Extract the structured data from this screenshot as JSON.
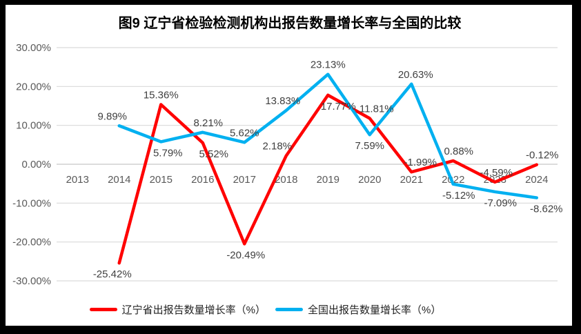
{
  "frame": {
    "border_color": "#000000",
    "background_color": "#ffffff"
  },
  "chart_data": {
    "type": "line",
    "title": "图9  辽宁省检验检测机构出报告数量增长率与全国的比较",
    "categories": [
      "2013",
      "2014",
      "2015",
      "2016",
      "2017",
      "2018",
      "2019",
      "2020",
      "2021",
      "2022",
      "2023",
      "2024"
    ],
    "yticks": [
      "30.00%",
      "20.00%",
      "10.00%",
      "0.00%",
      "-10.00%",
      "-20.00%",
      "-30.00%"
    ],
    "ylim": [
      -30,
      30
    ],
    "ytick_step": 10,
    "grid": true,
    "gridline_color": "#d9d9d9",
    "zero_line_color": "#c6c6c6",
    "axis_label_color": "#595959",
    "data_label_color": "#3f3f3f",
    "legend_position": "bottom",
    "series": [
      {
        "id": "liaoning",
        "name": "辽宁省出报告数量增长率（%）",
        "color": "#FF0000",
        "values": [
          null,
          -25.42,
          15.36,
          5.52,
          -20.49,
          2.18,
          17.77,
          11.81,
          -1.99,
          0.88,
          -4.59,
          -0.12
        ],
        "labels": [
          null,
          "-25.42%",
          "15.36%",
          "5.52%",
          "-20.49%",
          "2.18%",
          "17.77%",
          "11.81%",
          "-1.99%",
          "0.88%",
          "-4.59%",
          "-0.12%"
        ],
        "label_side": [
          null,
          "below",
          "above",
          "below",
          "below",
          "above",
          "below",
          "above",
          "above",
          "above",
          "above",
          "above"
        ],
        "label_dx": [
          0,
          -10,
          0,
          16,
          2,
          -13,
          15,
          10,
          13,
          8,
          2,
          8
        ]
      },
      {
        "id": "national",
        "name": "全国出报告数量增长率（%）",
        "color": "#00B0F0",
        "values": [
          null,
          9.89,
          5.79,
          8.21,
          5.62,
          13.83,
          23.13,
          7.59,
          20.63,
          -5.12,
          -7.09,
          -8.62
        ],
        "labels": [
          null,
          "9.89%",
          "5.79%",
          "8.21%",
          "5.62%",
          "13.83%",
          "23.13%",
          "7.59%",
          "20.63%",
          "-5.12%",
          "-7.09%",
          "-8.62%"
        ],
        "label_side": [
          null,
          "above",
          "below",
          "above",
          "above",
          "above",
          "above",
          "below",
          "above",
          "below",
          "below",
          "below"
        ],
        "label_dx": [
          0,
          -10,
          10,
          8,
          0,
          -5,
          0,
          0,
          6,
          8,
          8,
          14
        ]
      }
    ]
  }
}
